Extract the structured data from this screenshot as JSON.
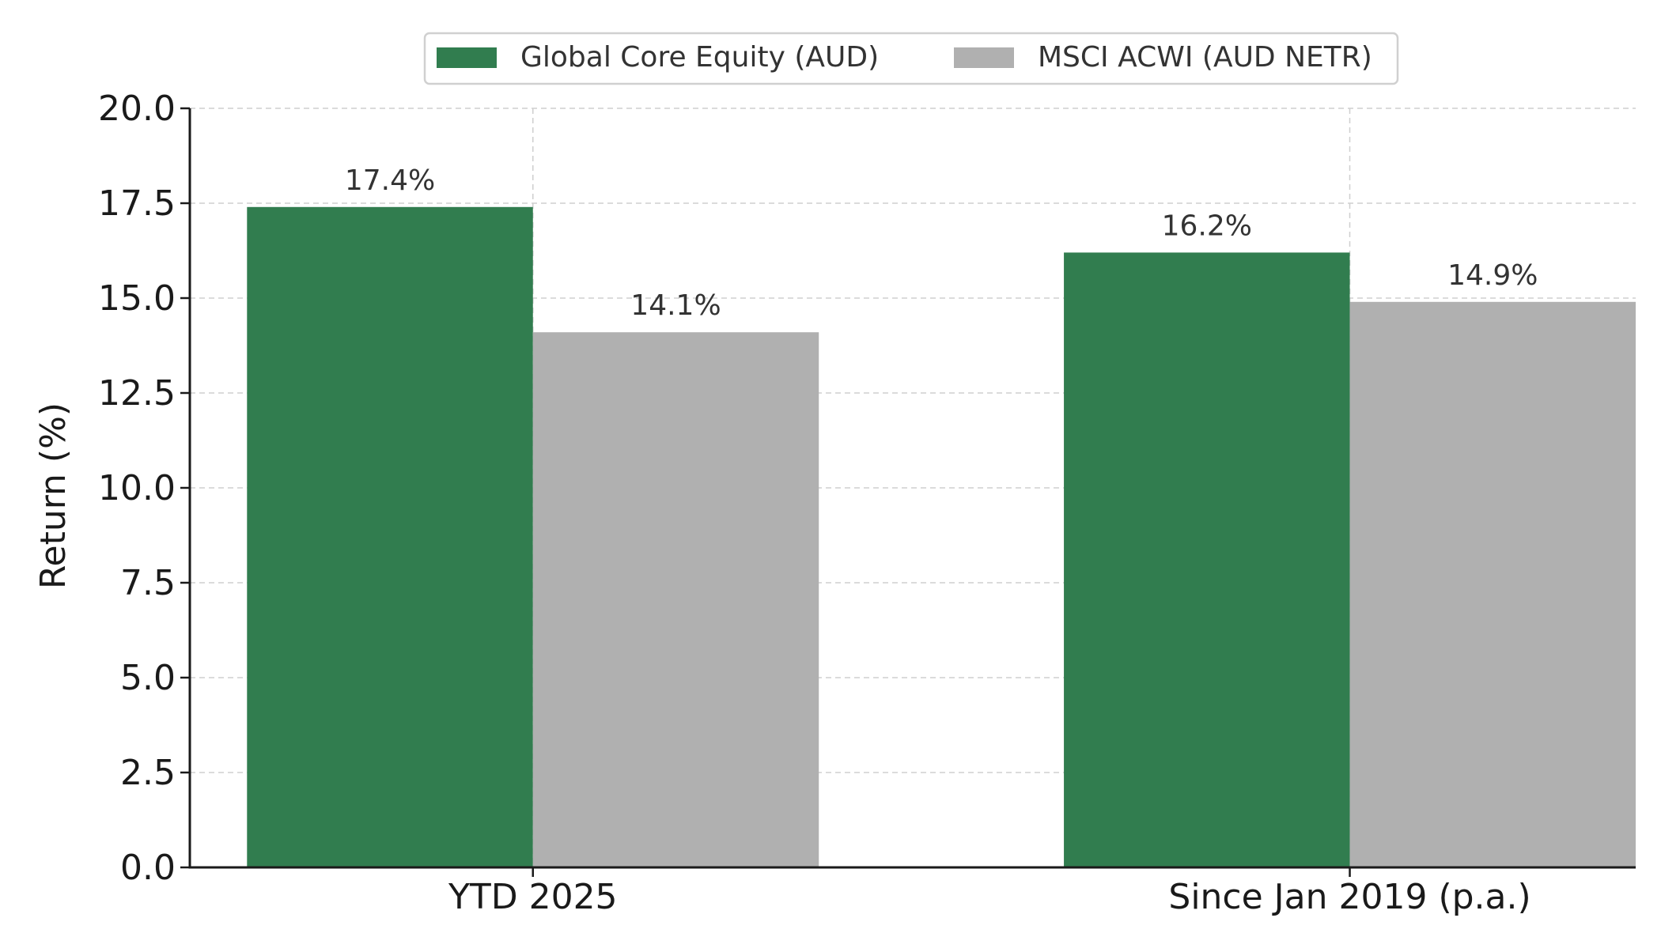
{
  "chart_data": {
    "type": "bar",
    "categories": [
      "YTD 2025",
      "Since Jan 2019 (p.a.)"
    ],
    "series": [
      {
        "name": "Global Core Equity (AUD)",
        "values": [
          17.4,
          16.2
        ],
        "color": "#317d4f",
        "labels": [
          "17.4%",
          "16.2%"
        ]
      },
      {
        "name": "MSCI ACWI (AUD NETR)",
        "values": [
          14.1,
          14.9
        ],
        "color": "#b0b0b0",
        "labels": [
          "14.1%",
          "14.9%"
        ]
      }
    ],
    "title": "",
    "xlabel": "",
    "ylabel": "Return (%)",
    "ylim": [
      0,
      20
    ],
    "yticks": [
      0,
      2.5,
      5,
      7.5,
      10,
      12.5,
      15,
      17.5,
      20
    ],
    "ytick_labels": [
      "0.0",
      "2.5",
      "5.0",
      "7.5",
      "10.0",
      "12.5",
      "15.0",
      "17.5",
      "20.0"
    ],
    "grid": true,
    "legend_position": "top-center"
  }
}
